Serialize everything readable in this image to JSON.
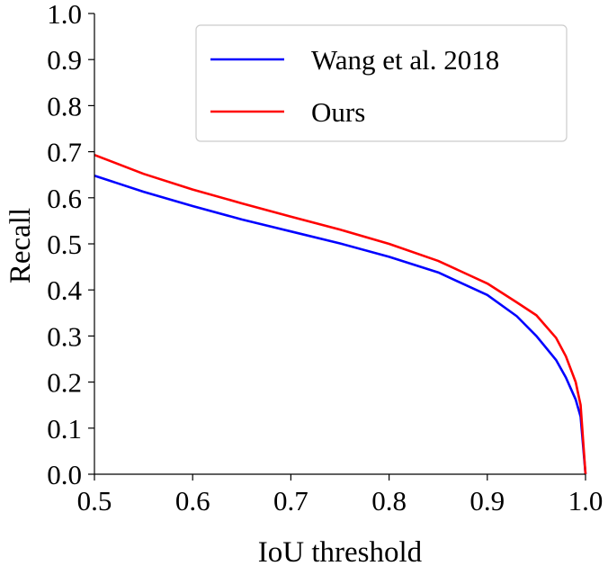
{
  "chart_data": {
    "type": "line",
    "title": "",
    "xlabel": "IoU threshold",
    "ylabel": "Recall",
    "xlim": [
      0.5,
      1.0
    ],
    "ylim": [
      0.0,
      1.0
    ],
    "xticks": [
      "0.5",
      "0.6",
      "0.7",
      "0.8",
      "0.9",
      "1.0"
    ],
    "yticks": [
      "0.0",
      "0.1",
      "0.2",
      "0.3",
      "0.4",
      "0.5",
      "0.6",
      "0.7",
      "0.8",
      "0.9",
      "1.0"
    ],
    "grid": false,
    "legend_position": "top-right",
    "series": [
      {
        "name": "Wang et al. 2018",
        "color": "#0000ff",
        "x": [
          0.5,
          0.55,
          0.6,
          0.65,
          0.7,
          0.75,
          0.8,
          0.85,
          0.9,
          0.93,
          0.95,
          0.97,
          0.98,
          0.99,
          0.995,
          1.0
        ],
        "y": [
          0.648,
          0.613,
          0.582,
          0.553,
          0.527,
          0.501,
          0.472,
          0.438,
          0.389,
          0.343,
          0.3,
          0.248,
          0.21,
          0.162,
          0.125,
          0.0
        ]
      },
      {
        "name": "Ours",
        "color": "#ff0000",
        "x": [
          0.5,
          0.55,
          0.6,
          0.65,
          0.7,
          0.75,
          0.8,
          0.85,
          0.9,
          0.93,
          0.95,
          0.97,
          0.98,
          0.99,
          0.995,
          1.0
        ],
        "y": [
          0.693,
          0.652,
          0.618,
          0.588,
          0.559,
          0.531,
          0.5,
          0.463,
          0.414,
          0.373,
          0.345,
          0.296,
          0.256,
          0.2,
          0.15,
          0.0
        ]
      }
    ]
  }
}
